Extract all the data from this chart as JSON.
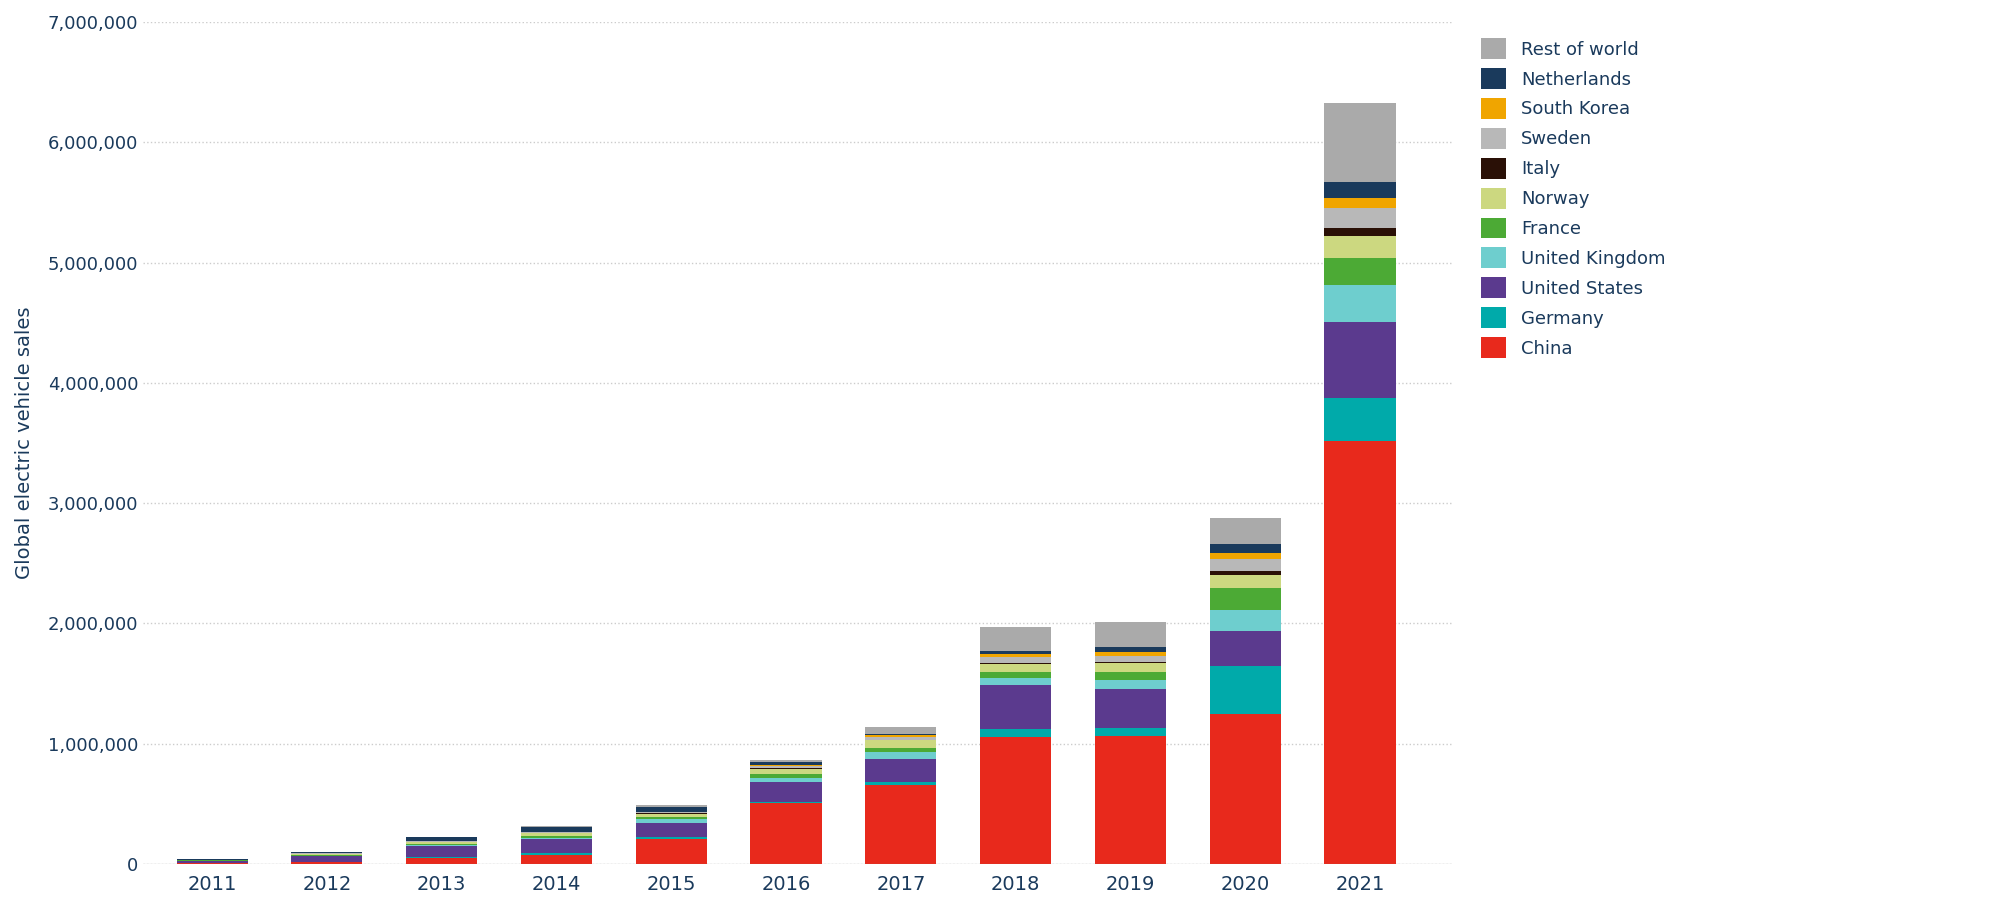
{
  "years": [
    2011,
    2012,
    2013,
    2014,
    2015,
    2016,
    2017,
    2018,
    2019,
    2020,
    2021
  ],
  "countries": [
    "China",
    "Germany",
    "United States",
    "United Kingdom",
    "France",
    "Norway",
    "Italy",
    "Sweden",
    "South Korea",
    "Netherlands",
    "Rest of world"
  ],
  "colors": [
    "#e8291c",
    "#00aaaa",
    "#5b3a8e",
    "#6ecece",
    "#4caa35",
    "#ccd880",
    "#2a1006",
    "#b8b8b8",
    "#f0a500",
    "#1a3a5c",
    "#aaaaaa"
  ],
  "data": {
    "China": [
      5579,
      11573,
      47471,
      74763,
      207042,
      507000,
      652000,
      1056000,
      1065000,
      1248000,
      3520000
    ],
    "Germany": [
      2154,
      2956,
      6051,
      12156,
      20100,
      11410,
      25057,
      67504,
      63281,
      395000,
      355000
    ],
    "United States": [
      17083,
      52835,
      97102,
      118773,
      114270,
      159139,
      195581,
      361307,
      328118,
      295000,
      631000
    ],
    "United Kingdom": [
      1052,
      1593,
      3586,
      9328,
      28188,
      37092,
      54538,
      59952,
      73997,
      175000,
      305000
    ],
    "France": [
      2411,
      5663,
      10387,
      16185,
      22694,
      34862,
      37004,
      46791,
      61150,
      185000,
      230000
    ],
    "Norway": [
      5163,
      10250,
      20381,
      22747,
      25779,
      43420,
      62313,
      72674,
      78938,
      107000,
      176000
    ],
    "Italy": [
      200,
      400,
      700,
      1000,
      1500,
      2000,
      4000,
      10000,
      10000,
      32000,
      68000
    ],
    "Sweden": [
      970,
      2018,
      5082,
      6273,
      9625,
      16774,
      27017,
      43228,
      44298,
      100000,
      172000
    ],
    "South Korea": [
      462,
      862,
      1464,
      2780,
      5713,
      10118,
      13852,
      30000,
      33000,
      46000,
      80000
    ],
    "Netherlands": [
      2987,
      8779,
      29853,
      43842,
      40948,
      24218,
      8981,
      26100,
      44000,
      73000,
      130000
    ],
    "Rest of world": [
      1500,
      2100,
      3000,
      5000,
      11000,
      15000,
      60000,
      200000,
      210000,
      220000,
      660000
    ]
  },
  "ylabel": "Global electric vehicle sales",
  "ylim": [
    0,
    7000000
  ],
  "yticks": [
    0,
    1000000,
    2000000,
    3000000,
    4000000,
    5000000,
    6000000,
    7000000
  ],
  "background_color": "#ffffff",
  "grid_color": "#cccccc",
  "tick_label_color": "#1a3a5c",
  "ylabel_color": "#1a3a5c",
  "legend_text_color": "#1a3a5c",
  "bar_width": 0.62
}
